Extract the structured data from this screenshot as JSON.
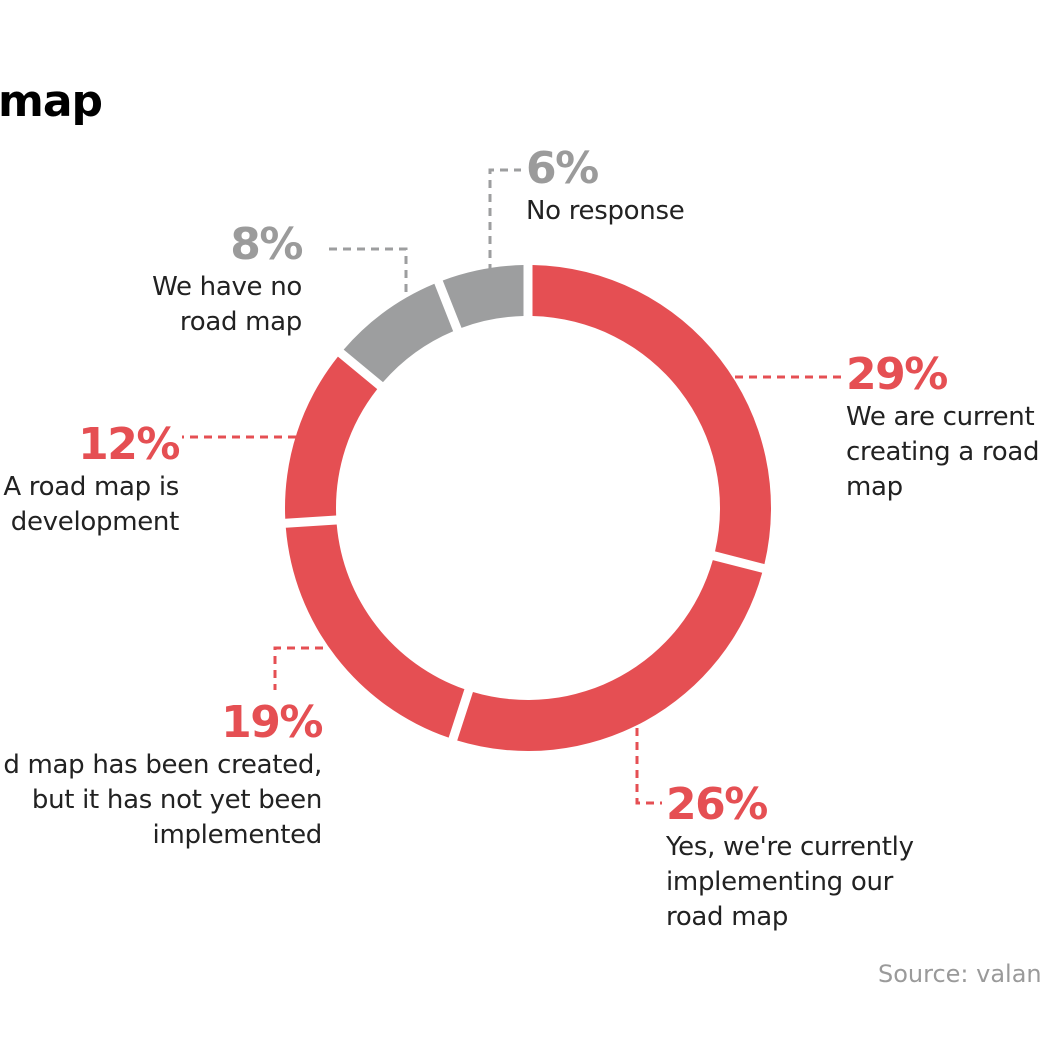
{
  "title": "map",
  "source": "Source: valant",
  "colors": {
    "red": "#e54f53",
    "gray": "#9d9e9f",
    "text": "#222222"
  },
  "chart_data": {
    "type": "pie",
    "style": "donut",
    "slices": [
      {
        "label": "We are currently creating a road map",
        "lines": [
          "We are current",
          "creating a road",
          "map"
        ],
        "value": 29,
        "pct": "29%",
        "color": "#e54f53"
      },
      {
        "label": "Yes, we're currently implementing our road map",
        "lines": [
          "Yes, we're currently",
          "implementing our",
          "road map"
        ],
        "value": 26,
        "pct": "26%",
        "color": "#e54f53"
      },
      {
        "label": "A road map has been created, but it has not yet been implemented",
        "lines": [
          "d map has been created,",
          "but it has not yet been",
          "implemented"
        ],
        "value": 19,
        "pct": "19%",
        "color": "#e54f53"
      },
      {
        "label": "A road map is in development",
        "lines": [
          "A road map is",
          "development"
        ],
        "value": 12,
        "pct": "12%",
        "color": "#e54f53"
      },
      {
        "label": "We have no road map",
        "lines": [
          "We have no",
          "road map"
        ],
        "value": 8,
        "pct": "8%",
        "color": "#9d9e9f"
      },
      {
        "label": "No response",
        "lines": [
          "No response"
        ],
        "value": 6,
        "pct": "6%",
        "color": "#9d9e9f"
      }
    ]
  }
}
